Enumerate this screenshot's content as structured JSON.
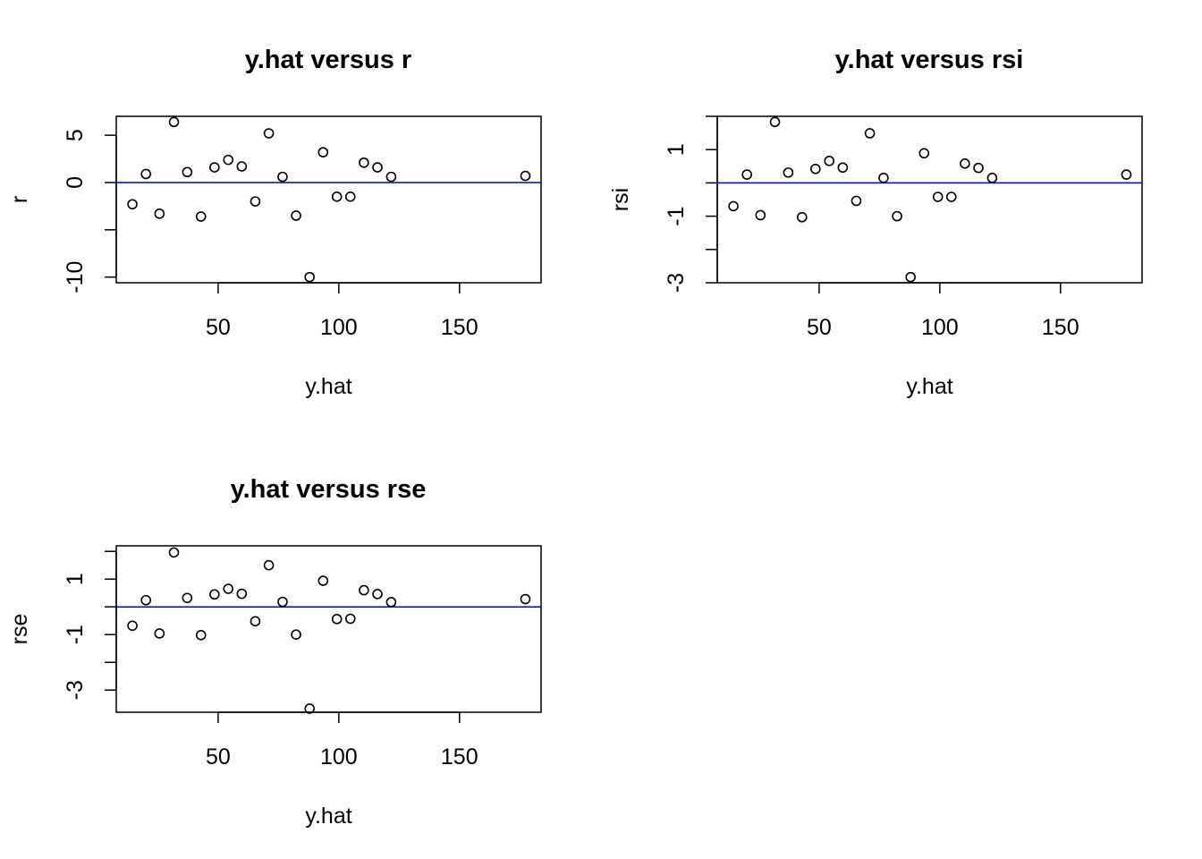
{
  "chart_data": [
    {
      "type": "scatter",
      "title": "y.hat versus r",
      "xlabel": "y.hat",
      "ylabel": "r",
      "xlim": [
        7.8,
        183.8
      ],
      "ylim": [
        -10.6,
        7
      ],
      "x_ticks": [
        50,
        100,
        150
      ],
      "x_tick_labels": [
        "50",
        "100",
        "150"
      ],
      "y_ticks": [
        -10,
        -5,
        0,
        5
      ],
      "y_tick_labels": [
        "-10",
        "",
        "0",
        "5"
      ],
      "reference_line": 0,
      "reference_line_color": "#0000CD",
      "points": {
        "x": [
          14.5,
          20.1,
          25.7,
          31.7,
          37.2,
          42.9,
          48.5,
          54.2,
          59.8,
          65.4,
          71.0,
          76.7,
          82.3,
          87.9,
          93.5,
          99.2,
          104.8,
          110.4,
          116.0,
          121.7,
          177.3
        ],
        "y": [
          -2.3,
          0.9,
          -3.3,
          6.4,
          1.1,
          -3.6,
          1.6,
          2.4,
          1.7,
          -2.0,
          5.2,
          0.6,
          -3.5,
          -10.0,
          3.2,
          -1.5,
          -1.5,
          2.1,
          1.6,
          0.6,
          0.7
        ]
      }
    },
    {
      "type": "scatter",
      "title": "y.hat versus rsi",
      "xlabel": "y.hat",
      "ylabel": "rsi",
      "xlim": [
        7.8,
        183.8
      ],
      "ylim": [
        -3.0,
        2.0
      ],
      "x_ticks": [
        50,
        100,
        150
      ],
      "x_tick_labels": [
        "50",
        "100",
        "150"
      ],
      "y_ticks": [
        -3,
        -2,
        -1,
        0,
        1,
        2
      ],
      "y_tick_labels": [
        "-3",
        "",
        "-1",
        "",
        "1",
        ""
      ],
      "reference_line": 0,
      "reference_line_color": "#0000CD",
      "points": {
        "x": [
          14.5,
          20.1,
          25.7,
          31.7,
          37.2,
          42.9,
          48.5,
          54.2,
          59.8,
          65.4,
          71.0,
          76.7,
          82.3,
          87.9,
          93.5,
          99.2,
          104.8,
          110.4,
          116.0,
          121.7,
          177.3
        ],
        "y": [
          -0.7,
          0.25,
          -0.97,
          1.83,
          0.31,
          -1.03,
          0.42,
          0.66,
          0.46,
          -0.54,
          1.49,
          0.15,
          -1.0,
          -2.83,
          0.89,
          -0.42,
          -0.42,
          0.58,
          0.45,
          0.15,
          0.25
        ]
      }
    },
    {
      "type": "scatter",
      "title": "y.hat versus rse",
      "xlabel": "y.hat",
      "ylabel": "rse",
      "xlim": [
        7.8,
        183.8
      ],
      "ylim": [
        -3.8,
        2.2
      ],
      "x_ticks": [
        50,
        100,
        150
      ],
      "x_tick_labels": [
        "50",
        "100",
        "150"
      ],
      "y_ticks": [
        -3,
        -2,
        -1,
        0,
        1,
        2
      ],
      "y_tick_labels": [
        "-3",
        "",
        "-1",
        "",
        "1",
        ""
      ],
      "reference_line": 0,
      "reference_line_color": "#0000CD",
      "points": {
        "x": [
          14.5,
          20.1,
          25.7,
          31.7,
          37.2,
          42.9,
          48.5,
          54.2,
          59.8,
          65.4,
          71.0,
          76.7,
          82.3,
          87.9,
          93.5,
          99.2,
          104.8,
          110.4,
          116.0,
          121.7,
          177.3
        ],
        "y": [
          -0.68,
          0.24,
          -0.96,
          1.96,
          0.32,
          -1.02,
          0.45,
          0.65,
          0.47,
          -0.52,
          1.5,
          0.18,
          -1.0,
          -3.67,
          0.94,
          -0.44,
          -0.43,
          0.6,
          0.46,
          0.17,
          0.28
        ]
      }
    }
  ]
}
